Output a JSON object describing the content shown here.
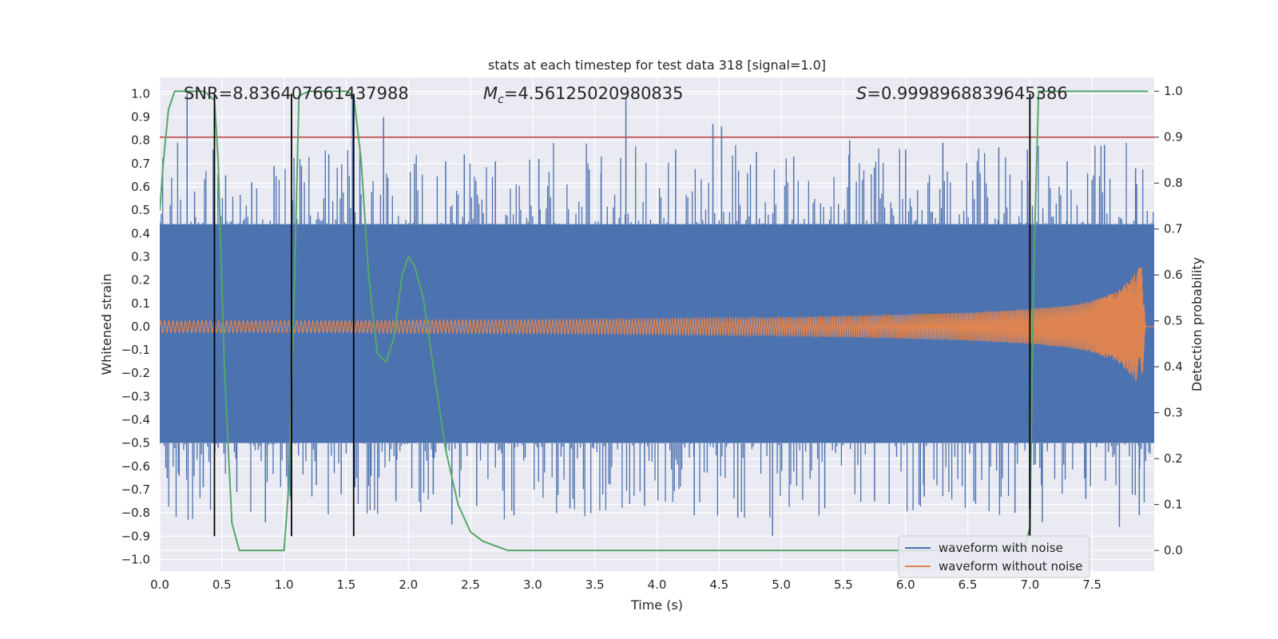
{
  "chart_data": {
    "type": "line",
    "title": "stats at each timestep for test data 318 [signal=1.0]",
    "xlabel": "Time (s)",
    "ylabel": "Whitened strain",
    "y2label": "Detection probability",
    "xlim": [
      0.0,
      8.0
    ],
    "ylim": [
      -1.05,
      1.07
    ],
    "y2lim": [
      -0.045,
      1.03
    ],
    "x_ticks": [
      "0.0",
      "0.5",
      "1.0",
      "1.5",
      "2.0",
      "2.5",
      "3.0",
      "3.5",
      "4.0",
      "4.5",
      "5.0",
      "5.5",
      "6.0",
      "6.5",
      "7.0",
      "7.5"
    ],
    "y_ticks": [
      "-1.0",
      "-0.9",
      "-0.8",
      "-0.7",
      "-0.6",
      "-0.5",
      "-0.4",
      "-0.3",
      "-0.2",
      "-0.1",
      "0.0",
      "0.1",
      "0.2",
      "0.3",
      "0.4",
      "0.5",
      "0.6",
      "0.7",
      "0.8",
      "0.9",
      "1.0"
    ],
    "y2_ticks": [
      "0.0",
      "0.1",
      "0.2",
      "0.3",
      "0.4",
      "0.5",
      "0.6",
      "0.7",
      "0.8",
      "0.9",
      "1.0"
    ],
    "grid": true,
    "legend_position": "lower-right",
    "annotations": {
      "snr": "SNR=8.836407661437988",
      "mc_symbol": "M",
      "mc_sub": "c",
      "mc_value": "=4.56125020980835",
      "s_symbol": "S",
      "s_value": "=0.9998968839645386"
    },
    "threshold": {
      "value": 0.9,
      "axis": "right",
      "color": "#c44e52"
    },
    "vertical_markers_x": [
      0.44,
      1.06,
      1.56,
      7.0
    ],
    "series": [
      {
        "name": "waveform with noise",
        "color": "#4c72b0",
        "axis": "left",
        "band": {
          "x": [
            0.0,
            8.0
          ],
          "upper": 0.44,
          "lower": -0.5
        },
        "spikes": [
          [
            0.09,
            0.43
          ],
          [
            0.15,
            -0.63
          ],
          [
            0.22,
            1.0
          ],
          [
            0.28,
            0.58
          ],
          [
            0.35,
            -0.69
          ],
          [
            0.43,
            0.76
          ],
          [
            0.47,
            -0.52
          ],
          [
            0.53,
            0.65
          ],
          [
            0.62,
            -0.71
          ],
          [
            0.74,
            0.62
          ],
          [
            0.85,
            -0.84
          ],
          [
            0.92,
            0.69
          ],
          [
            1.05,
            -0.73
          ],
          [
            1.14,
            0.69
          ],
          [
            1.26,
            -0.68
          ],
          [
            1.36,
            0.74
          ],
          [
            1.46,
            -0.72
          ],
          [
            1.55,
            0.99
          ],
          [
            1.57,
            -0.69
          ],
          [
            1.61,
            0.78
          ],
          [
            1.7,
            -0.64
          ],
          [
            1.8,
            0.9
          ],
          [
            1.9,
            -0.75
          ],
          [
            2.05,
            0.7
          ],
          [
            2.2,
            -0.72
          ],
          [
            2.3,
            0.71
          ],
          [
            2.35,
            -0.85
          ],
          [
            2.45,
            0.74
          ],
          [
            2.55,
            -0.77
          ],
          [
            2.7,
            0.71
          ],
          [
            2.85,
            -0.81
          ],
          [
            3.05,
            0.72
          ],
          [
            3.3,
            -0.78
          ],
          [
            3.55,
            0.66
          ],
          [
            3.75,
            0.98
          ],
          [
            3.9,
            -0.77
          ],
          [
            4.15,
            0.76
          ],
          [
            4.3,
            -0.81
          ],
          [
            4.45,
            0.87
          ],
          [
            4.52,
            0.86
          ],
          [
            4.65,
            -0.82
          ],
          [
            4.8,
            0.75
          ],
          [
            4.93,
            -0.9
          ],
          [
            5.1,
            0.73
          ],
          [
            5.35,
            -0.78
          ],
          [
            5.55,
            0.8
          ],
          [
            5.75,
            -0.75
          ],
          [
            6.0,
            0.76
          ],
          [
            6.15,
            -0.73
          ],
          [
            6.3,
            0.79
          ],
          [
            6.55,
            -0.75
          ],
          [
            6.75,
            0.77
          ],
          [
            6.88,
            -0.8
          ],
          [
            6.98,
            0.76
          ],
          [
            7.1,
            -0.84
          ],
          [
            7.3,
            0.71
          ],
          [
            7.45,
            -0.74
          ],
          [
            7.6,
            0.78
          ],
          [
            7.72,
            -0.86
          ],
          [
            7.85,
            0.68
          ],
          [
            7.88,
            -0.81
          ]
        ]
      },
      {
        "name": "waveform without noise",
        "color": "#dd8452",
        "axis": "left",
        "envelope": [
          [
            0.0,
            0.025
          ],
          [
            1.0,
            0.025
          ],
          [
            2.0,
            0.028
          ],
          [
            3.0,
            0.03
          ],
          [
            4.0,
            0.034
          ],
          [
            5.0,
            0.04
          ],
          [
            5.5,
            0.045
          ],
          [
            6.0,
            0.052
          ],
          [
            6.5,
            0.06
          ],
          [
            7.0,
            0.075
          ],
          [
            7.3,
            0.09
          ],
          [
            7.5,
            0.11
          ],
          [
            7.7,
            0.15
          ],
          [
            7.8,
            0.2
          ],
          [
            7.86,
            0.24
          ],
          [
            7.9,
            0.26
          ],
          [
            7.93,
            0.0
          ],
          [
            8.0,
            0.0
          ]
        ],
        "cycles_first_second": 30,
        "freq_growth": 3.0
      },
      {
        "name": "Detection probability",
        "color": "#55a868",
        "axis": "right",
        "x": [
          0.0,
          0.03,
          0.07,
          0.12,
          0.2,
          0.28,
          0.36,
          0.44,
          0.47,
          0.52,
          0.58,
          0.64,
          0.7,
          0.8,
          0.9,
          1.0,
          1.04,
          1.08,
          1.12,
          1.2,
          1.3,
          1.4,
          1.5,
          1.56,
          1.62,
          1.68,
          1.75,
          1.82,
          1.88,
          1.95,
          2.0,
          2.05,
          2.12,
          2.2,
          2.3,
          2.4,
          2.5,
          2.6,
          2.7,
          2.8,
          2.9,
          3.0,
          3.5,
          4.0,
          5.0,
          6.0,
          6.5,
          6.9,
          6.95,
          7.0,
          7.03,
          7.07,
          7.2,
          7.4,
          7.6,
          7.8,
          7.95
        ],
        "y": [
          0.74,
          0.85,
          0.96,
          1.0,
          1.0,
          1.0,
          1.0,
          0.98,
          0.85,
          0.4,
          0.06,
          0.0,
          0.0,
          0.0,
          0.0,
          0.0,
          0.15,
          0.55,
          0.99,
          1.0,
          1.0,
          1.0,
          1.0,
          0.99,
          0.85,
          0.6,
          0.43,
          0.41,
          0.46,
          0.6,
          0.64,
          0.62,
          0.55,
          0.4,
          0.22,
          0.1,
          0.04,
          0.02,
          0.01,
          0.0,
          0.0,
          0.0,
          0.0,
          0.0,
          0.0,
          0.0,
          0.0,
          0.0,
          0.0,
          0.05,
          0.6,
          1.0,
          1.0,
          1.0,
          1.0,
          1.0,
          1.0
        ]
      }
    ]
  }
}
